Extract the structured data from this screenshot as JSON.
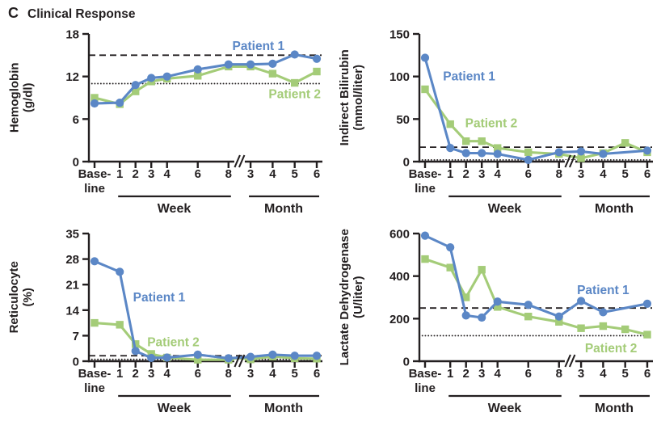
{
  "header": {
    "panel_letter": "C",
    "title": "Clinical Response"
  },
  "colors": {
    "patient1": "#5b87c6",
    "patient2": "#a4cc78",
    "ink": "#231f20"
  },
  "x_axis": {
    "baseline_label_line1": "Base-",
    "baseline_label_line2": "line",
    "week_ticks": [
      "1",
      "2",
      "3",
      "4",
      "6",
      "8"
    ],
    "month_ticks": [
      "3",
      "4",
      "5",
      "6"
    ],
    "week_label": "Week",
    "month_label": "Month"
  },
  "chart_data": [
    {
      "id": "hemoglobin",
      "type": "line",
      "title_lines": [
        "Hemoglobin",
        "(g/dl)"
      ],
      "ylabel": "Hemoglobin (g/dl)",
      "ylim": [
        0,
        18
      ],
      "yticks": [
        0,
        6,
        12,
        18
      ],
      "dashed_ref": 15,
      "dotted_ref": 11,
      "x_categories": [
        "Baseline",
        "Week 1",
        "Week 2",
        "Week 3",
        "Week 4",
        "Week 6",
        "Week 8",
        "Month 3",
        "Month 4",
        "Month 5",
        "Month 6"
      ],
      "series": [
        {
          "name": "Patient 1",
          "color_key": "patient1",
          "marker": "circle",
          "values": [
            8.2,
            8.3,
            10.8,
            11.8,
            12.0,
            13.0,
            13.7,
            13.7,
            13.8,
            15.1,
            14.5
          ],
          "marker_skip": [],
          "label_pos": {
            "x": 10.4,
            "y": 16.3
          }
        },
        {
          "name": "Patient 2",
          "color_key": "patient2",
          "marker": "square",
          "values": [
            9.0,
            8.1,
            9.9,
            11.3,
            11.7,
            12.1,
            13.4,
            13.4,
            12.4,
            11.1,
            12.7
          ],
          "marker_skip": [],
          "label_pos": {
            "x": 12.7,
            "y": 9.5
          }
        }
      ]
    },
    {
      "id": "indirect-bilirubin",
      "type": "line",
      "title_lines": [
        "Indirect Bilirubin",
        "(mmol/liter)"
      ],
      "ylabel": "Indirect Bilirubin (mmol/liter)",
      "ylim": [
        0,
        150
      ],
      "yticks": [
        0,
        50,
        100,
        150
      ],
      "dashed_ref": 17,
      "dotted_ref": 2,
      "x_categories": [
        "Baseline",
        "Week 1",
        "Week 2",
        "Week 3",
        "Week 4",
        "Week 6",
        "Week 8",
        "Month 3",
        "Month 4",
        "Month 5",
        "Month 6"
      ],
      "series": [
        {
          "name": "Patient 1",
          "color_key": "patient1",
          "marker": "circle",
          "values": [
            122,
            16,
            10,
            10,
            9,
            2,
            11,
            12,
            9,
            11,
            13
          ],
          "marker_skip": [
            9
          ],
          "label_pos": {
            "x": 2.8,
            "y": 100
          }
        },
        {
          "name": "Patient 2",
          "color_key": "patient2",
          "marker": "square",
          "values": [
            85,
            44,
            24,
            24,
            16,
            11,
            9,
            4,
            10,
            22,
            11
          ],
          "marker_skip": [],
          "label_pos": {
            "x": 4.2,
            "y": 45
          }
        }
      ]
    },
    {
      "id": "reticulocyte",
      "type": "line",
      "title_lines": [
        "Reticulocyte",
        "(%)"
      ],
      "ylabel": "Reticulocyte (%)",
      "ylim": [
        0,
        35
      ],
      "yticks": [
        0,
        7,
        14,
        21,
        28,
        35
      ],
      "dashed_ref": 1.5,
      "dotted_ref": 0.5,
      "x_categories": [
        "Baseline",
        "Week 1",
        "Week 2",
        "Week 3",
        "Week 4",
        "Week 6",
        "Week 8",
        "Month 3",
        "Month 4",
        "Month 5",
        "Month 6"
      ],
      "series": [
        {
          "name": "Patient 1",
          "color_key": "patient1",
          "marker": "circle",
          "values": [
            27.4,
            24.5,
            2.8,
            0.9,
            1.0,
            1.8,
            0.8,
            1.2,
            1.8,
            1.5,
            1.5
          ],
          "marker_skip": [],
          "label_pos": {
            "x": 4.1,
            "y": 17.5
          }
        },
        {
          "name": "Patient 2",
          "color_key": "patient2",
          "marker": "square",
          "values": [
            10.5,
            10.0,
            4.7,
            2.0,
            1.0,
            0.4,
            0.4,
            0.5,
            1.3,
            0.8,
            0.7
          ],
          "marker_skip": [],
          "label_pos": {
            "x": 5.0,
            "y": 5.2
          }
        }
      ]
    },
    {
      "id": "lactate-dehydrogenase",
      "type": "line",
      "title_lines": [
        "Lactate Dehydrogenase",
        "(U/liter)"
      ],
      "ylabel": "Lactate Dehydrogenase (U/liter)",
      "ylim": [
        0,
        600
      ],
      "yticks": [
        0,
        200,
        400,
        600
      ],
      "dashed_ref": 250,
      "dotted_ref": 120,
      "x_categories": [
        "Baseline",
        "Week 1",
        "Week 2",
        "Week 3",
        "Week 4",
        "Week 6",
        "Week 8",
        "Month 3",
        "Month 4",
        "Month 5",
        "Month 6"
      ],
      "series": [
        {
          "name": "Patient 1",
          "color_key": "patient1",
          "marker": "circle",
          "values": [
            590,
            535,
            215,
            205,
            280,
            265,
            210,
            283,
            230,
            250,
            270
          ],
          "marker_skip": [
            9
          ],
          "label_pos": {
            "x": 11.3,
            "y": 335
          }
        },
        {
          "name": "Patient 2",
          "color_key": "patient2",
          "marker": "square",
          "values": [
            480,
            440,
            300,
            430,
            255,
            210,
            185,
            155,
            165,
            150,
            125
          ],
          "marker_skip": [],
          "label_pos": {
            "x": 11.8,
            "y": 60
          }
        }
      ]
    }
  ]
}
